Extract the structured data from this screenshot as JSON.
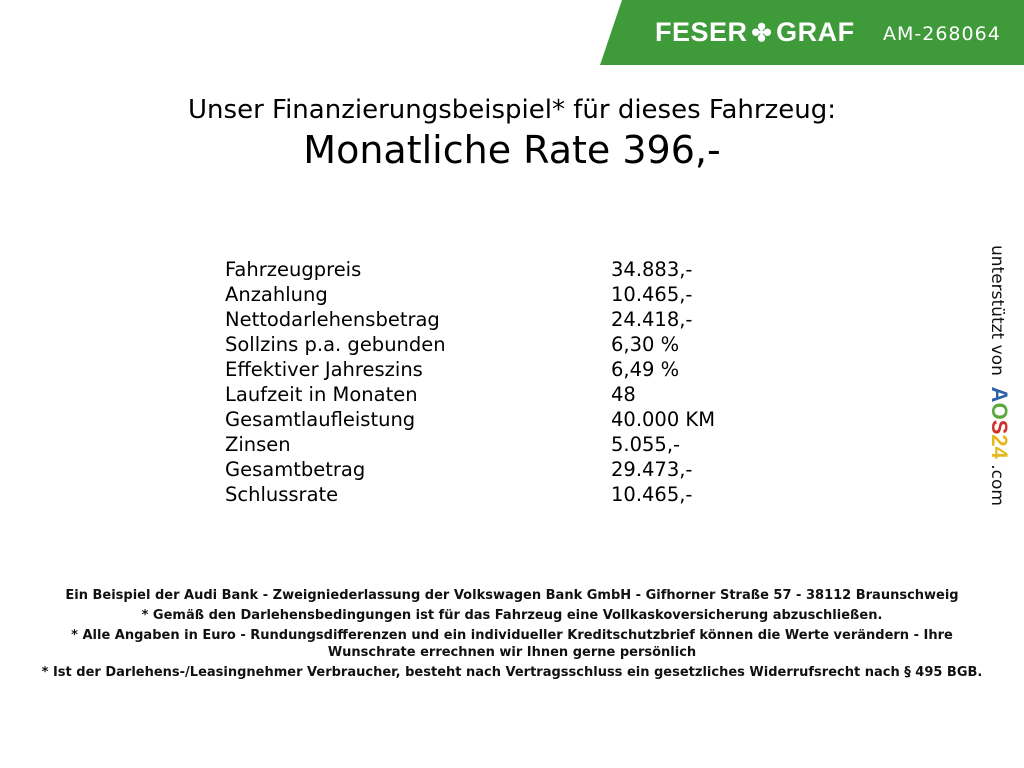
{
  "header": {
    "brand_left": "FESER",
    "brand_right": "GRAF",
    "code": "AM-268064",
    "brand_color": "#3f9b3a"
  },
  "title": {
    "line1": "Unser Finanzierungsbeispiel* für dieses Fahrzeug:",
    "line2": "Monatliche Rate 396,-"
  },
  "table": [
    {
      "label": "Fahrzeugpreis",
      "value": "34.883,-"
    },
    {
      "label": "Anzahlung",
      "value": "10.465,-"
    },
    {
      "label": "Nettodarlehensbetrag",
      "value": "24.418,-"
    },
    {
      "label": "Sollzins p.a. gebunden",
      "value": "6,30 %"
    },
    {
      "label": "Effektiver Jahreszins",
      "value": "6,49 %"
    },
    {
      "label": "Laufzeit in Monaten",
      "value": "48"
    },
    {
      "label": "Gesamtlaufleistung",
      "value": "40.000 KM"
    },
    {
      "label": "Zinsen",
      "value": "5.055,-"
    },
    {
      "label": "Gesamtbetrag",
      "value": "29.473,-"
    },
    {
      "label": "Schlussrate",
      "value": "10.465,-"
    }
  ],
  "side": {
    "text": "unterstützt von",
    "logo": [
      "A",
      "O",
      "S",
      "2",
      "4"
    ],
    "suffix": ".com",
    "logo_colors": [
      "#2f5fa8",
      "#5aa83a",
      "#d0302c",
      "#e6b820",
      "#e6b820"
    ]
  },
  "footer": [
    "Ein Beispiel der Audi Bank - Zweigniederlassung der Volkswagen Bank GmbH - Gifhorner Straße 57 - 38112 Braunschweig",
    "* Gemäß den Darlehensbedingungen ist für das Fahrzeug eine Vollkaskoversicherung abzuschließen.",
    "* Alle Angaben in Euro - Rundungsdifferenzen und ein individueller Kreditschutzbrief können die Werte verändern - Ihre Wunschrate errechnen wir Ihnen gerne persönlich",
    "* Ist der Darlehens-/Leasingnehmer Verbraucher, besteht nach Vertragsschluss ein gesetzliches Widerrufsrecht nach § 495 BGB."
  ]
}
